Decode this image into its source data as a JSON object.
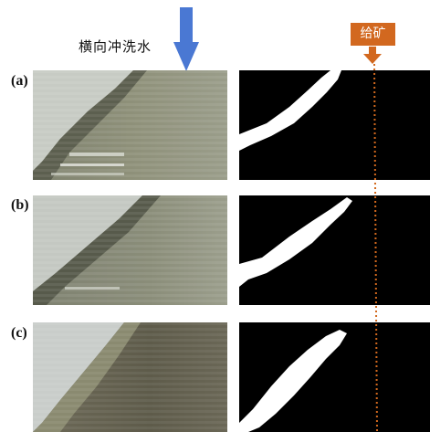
{
  "header": {
    "wash_water_label": "横向冲洗水",
    "feed_label": "给矿"
  },
  "rows": [
    {
      "label": "(a)"
    },
    {
      "label": "(b)"
    },
    {
      "label": "(c)"
    }
  ],
  "colors": {
    "arrow_blue": "#4a78d3",
    "feed_orange": "#d2681f",
    "mask_black": "#000000",
    "mask_white": "#ffffff",
    "dotted_line": "#d2691e"
  }
}
